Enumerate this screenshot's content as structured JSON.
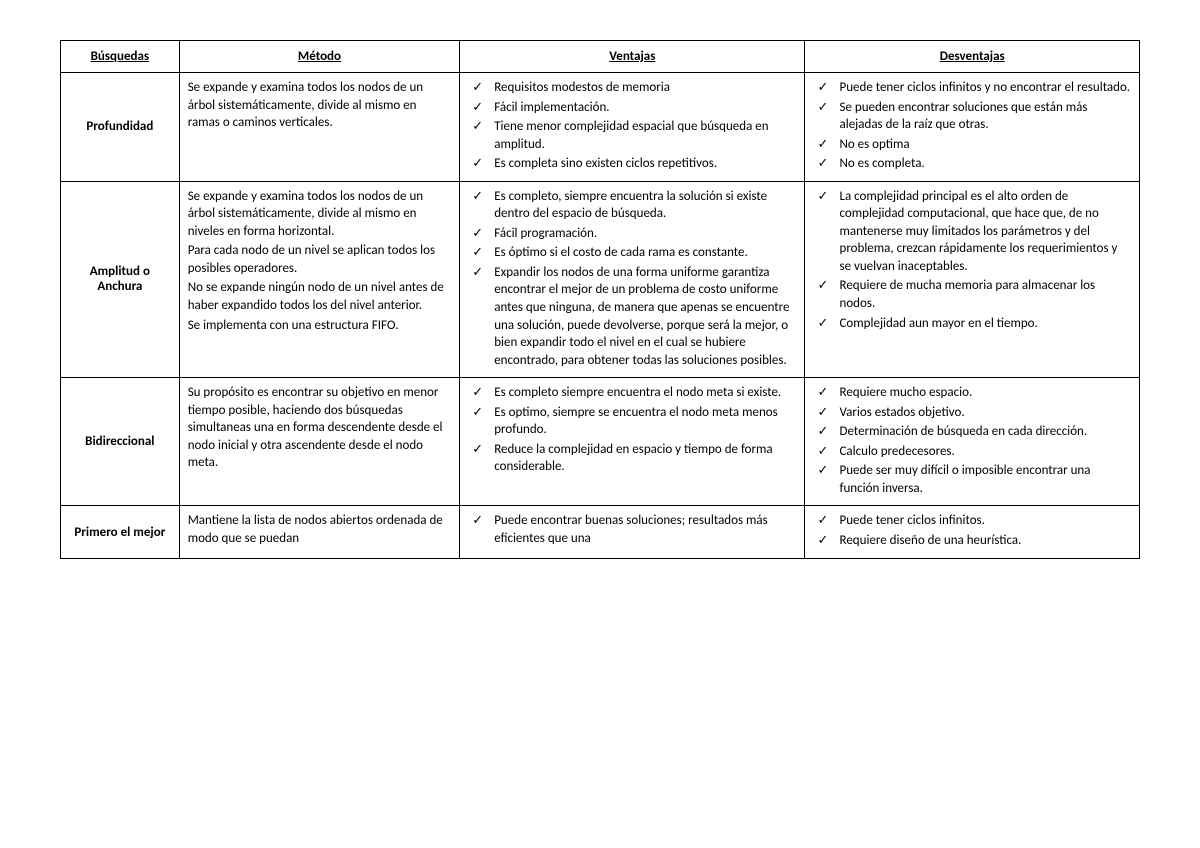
{
  "columns": [
    "Búsquedas",
    "Método",
    "Ventajas",
    "Desventajas"
  ],
  "rows": [
    {
      "name": "Profundidad",
      "metodo": [
        "Se expande y examina todos los nodos de un árbol sistemáticamente, divide al mismo en ramas o caminos verticales."
      ],
      "ventajas": [
        "Requisitos modestos de memoria",
        "Fácil implementación.",
        "Tiene menor complejidad espacial que búsqueda en amplitud.",
        "Es completa sino existen ciclos repetitivos."
      ],
      "desventajas": [
        "Puede tener ciclos infinitos y no encontrar el resultado.",
        "Se pueden encontrar soluciones que están más alejadas de la raíz que otras.",
        "No es optima",
        "No es completa."
      ]
    },
    {
      "name": "Amplitud o Anchura",
      "metodo": [
        "Se expande y examina todos los nodos de un árbol sistemáticamente, divide al mismo en niveles en forma horizontal.",
        "Para cada nodo de un nivel se aplican todos los posibles operadores.",
        "No se expande ningún nodo de un nivel antes de haber expandido todos los del nivel anterior.",
        "Se implementa con una estructura FIFO."
      ],
      "ventajas": [
        "Es completo, siempre encuentra la solución si existe dentro del espacio de búsqueda.",
        "Fácil programación.",
        "Es óptimo si el costo de cada rama es constante.",
        "Expandir los nodos de una forma uniforme garantiza encontrar el mejor de un problema de costo uniforme antes que ninguna, de manera que apenas se encuentre una solución, puede devolverse, porque será la mejor, o bien expandir todo el nivel en el cual se hubiere encontrado, para obtener todas las soluciones posibles."
      ],
      "desventajas": [
        "La complejidad principal es el alto orden de complejidad computacional, que hace que, de no mantenerse muy limitados los parámetros y del problema, crezcan rápidamente los requerimientos y se vuelvan inaceptables.",
        "Requiere de mucha memoria para almacenar los nodos.",
        "Complejidad aun mayor en el tiempo."
      ]
    },
    {
      "name": "Bidireccional",
      "metodo": [
        "Su propósito es encontrar su objetivo en menor tiempo posible, haciendo dos búsquedas simultaneas una en forma descendente desde el nodo inicial y otra ascendente desde el nodo meta."
      ],
      "ventajas": [
        "Es completo siempre encuentra el nodo meta si existe.",
        "Es optimo, siempre se encuentra el nodo meta menos profundo.",
        "Reduce la complejidad en espacio y tiempo de forma considerable."
      ],
      "desventajas": [
        "Requiere mucho espacio.",
        "Varios estados objetivo.",
        "Determinación de búsqueda en cada dirección.",
        "Calculo predecesores.",
        "Puede ser muy difícil o imposible encontrar una función inversa."
      ]
    },
    {
      "name": "Primero el mejor",
      "metodo": [
        "Mantiene  la lista de nodos abiertos ordenada de modo que se puedan"
      ],
      "ventajas": [
        "Puede encontrar buenas soluciones; resultados más eficientes que una"
      ],
      "desventajas": [
        "Puede tener ciclos infinitos.",
        "Requiere diseño de una heurística."
      ]
    }
  ]
}
